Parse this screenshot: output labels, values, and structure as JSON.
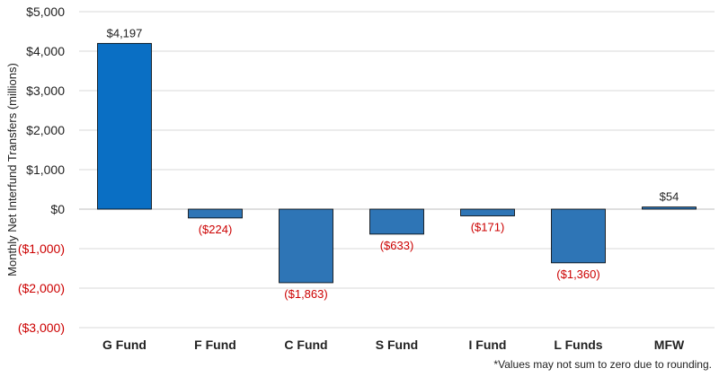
{
  "chart_data": {
    "type": "bar",
    "ylabel": "Monthly Net Interfund Transfers (millions)",
    "ylim": [
      -3000,
      5000
    ],
    "yticks": [
      -3000,
      -2000,
      -1000,
      0,
      1000,
      2000,
      3000,
      4000,
      5000
    ],
    "ytick_labels": [
      "($3,000)",
      "($2,000)",
      "($1,000)",
      "$0",
      "$1,000",
      "$2,000",
      "$3,000",
      "$4,000",
      "$5,000"
    ],
    "categories": [
      "G Fund",
      "F Fund",
      "C Fund",
      "S Fund",
      "I Fund",
      "L Funds",
      "MFW"
    ],
    "values": [
      4197,
      -224,
      -1863,
      -633,
      -171,
      -1360,
      54
    ],
    "data_labels": [
      "$4,197",
      "($224)",
      "($1,863)",
      "($633)",
      "($171)",
      "($1,360)",
      "$54"
    ],
    "grid": true
  },
  "footnote": "*Values may not sum to zero due to rounding.",
  "colors": {
    "first_bar": "#0a6fc4",
    "bar": "#2e75b6",
    "negative_text": "#cc0000",
    "text": "#222222",
    "grid": "#d9d9d9"
  }
}
